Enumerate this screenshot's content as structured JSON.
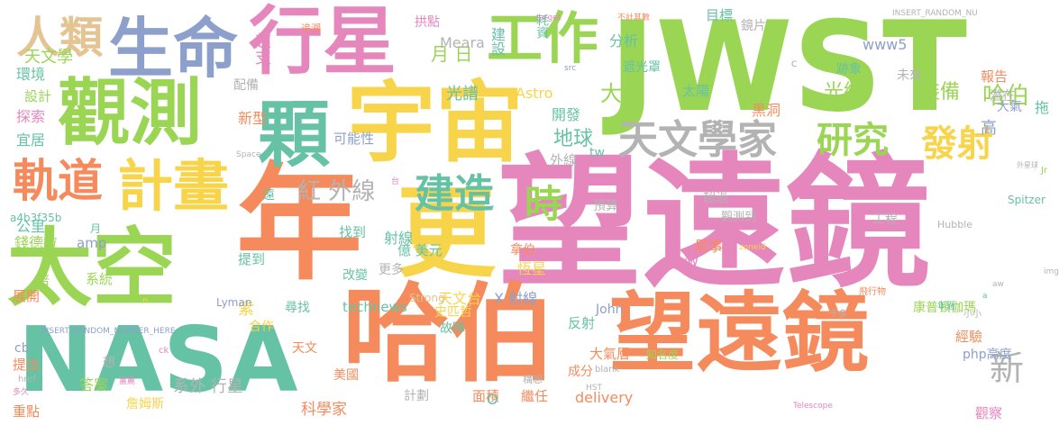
{
  "palette": {
    "pink": "#e586bd",
    "green": "#9ad554",
    "yellow": "#f8d44a",
    "orange": "#f58b5d",
    "blue": "#8da0cb",
    "teal": "#66c2a5",
    "tan": "#e5c494",
    "gray": "#b3b3b3"
  },
  "words": [
    {
      "text": "望遠鏡",
      "color": "#e586bd"
    },
    {
      "text": "年",
      "color": "#f58b5d"
    },
    {
      "text": "JWST",
      "color": "#9ad554"
    },
    {
      "text": "哈伯",
      "color": "#f58b5d"
    },
    {
      "text": "望遠鏡",
      "color": "#f58b5d"
    },
    {
      "text": "NASA",
      "color": "#66c2a5"
    },
    {
      "text": "太空",
      "color": "#9ad554"
    },
    {
      "text": "宇宙",
      "color": "#f8d44a"
    },
    {
      "text": "更",
      "color": "#f8d44a"
    },
    {
      "text": "行星",
      "color": "#e586bd"
    },
    {
      "text": "生命",
      "color": "#8da0cb"
    },
    {
      "text": "觀測",
      "color": "#9ad554"
    },
    {
      "text": "顆",
      "color": "#66c2a5"
    },
    {
      "text": "工作",
      "color": "#9ad554"
    },
    {
      "text": "計畫",
      "color": "#f8d44a"
    },
    {
      "text": "人類",
      "color": "#e5c494"
    },
    {
      "text": "天文學家",
      "color": "#b3b3b3"
    },
    {
      "text": "軌道",
      "color": "#f58b5d"
    },
    {
      "text": "研究",
      "color": "#9ad554"
    },
    {
      "text": "發射",
      "color": "#f8d44a"
    },
    {
      "text": "建造",
      "color": "#66c2a5"
    },
    {
      "text": "時",
      "color": "#9ad554"
    },
    {
      "text": "紅 外線",
      "color": "#b3b3b3"
    },
    {
      "text": "新",
      "color": "#b3b3b3"
    },
    {
      "text": "超支",
      "color": "#e586bd"
    },
    {
      "text": "哈伯",
      "color": "#9ad554"
    },
    {
      "text": "光線",
      "color": "#9ad554"
    },
    {
      "text": "大型",
      "color": "#9ad554"
    },
    {
      "text": "地球",
      "color": "#66c2a5"
    },
    {
      "text": "天文學",
      "color": "#9ad554"
    },
    {
      "text": "月 日",
      "color": "#9ad554"
    },
    {
      "text": "耗資",
      "color": "#66c2a5"
    },
    {
      "text": "目標",
      "color": "#66c2a5"
    },
    {
      "text": "Meara",
      "color": "#b3b3b3"
    },
    {
      "text": "拱點",
      "color": "#e586bd"
    },
    {
      "text": "追溯",
      "color": "#f58b5d"
    },
    {
      "text": "www5",
      "color": "#8da0cb"
    },
    {
      "text": "裝備",
      "color": "#9ad554"
    },
    {
      "text": "遮光罩",
      "color": "#66c2a5"
    },
    {
      "text": "跡象",
      "color": "#66c2a5"
    },
    {
      "text": "未來",
      "color": "#b3b3b3"
    },
    {
      "text": "分析",
      "color": "#66c2a5"
    },
    {
      "text": "建設",
      "color": "#66c2a5"
    },
    {
      "text": "鏡片",
      "color": "#b3b3b3"
    },
    {
      "text": "報告",
      "color": "#f58b5d"
    },
    {
      "text": "潛在",
      "color": "#b3b3b3"
    },
    {
      "text": "拖",
      "color": "#66c2a5"
    },
    {
      "text": "大氣",
      "color": "#8da0cb"
    },
    {
      "text": "高",
      "color": "#8da0cb"
    },
    {
      "text": "黑洞",
      "color": "#f58b5d"
    },
    {
      "text": "太陽",
      "color": "#66c2a5"
    },
    {
      "text": "開發",
      "color": "#66c2a5"
    },
    {
      "text": "光譜",
      "color": "#66c2a5"
    },
    {
      "text": "Astro",
      "color": "#f8d44a"
    },
    {
      "text": "配備",
      "color": "#b3b3b3"
    },
    {
      "text": "環境",
      "color": "#66c2a5"
    },
    {
      "text": "設計",
      "color": "#9ad554"
    },
    {
      "text": "探索",
      "color": "#e586bd"
    },
    {
      "text": "宜居",
      "color": "#66c2a5"
    },
    {
      "text": "新型",
      "color": "#f58b5d"
    },
    {
      "text": "可能性",
      "color": "#8da0cb"
    },
    {
      "text": "外線",
      "color": "#b3b3b3"
    },
    {
      "text": "tw",
      "color": "#66c2a5"
    },
    {
      "text": "遠",
      "color": "#66c2a5"
    },
    {
      "text": "公里",
      "color": "#66c2a5"
    },
    {
      "text": "錢德拉",
      "color": "#9ad554"
    },
    {
      "text": "射線",
      "color": "#66c2a5"
    },
    {
      "text": "找到",
      "color": "#66c2a5"
    },
    {
      "text": "億 美元",
      "color": "#66c2a5"
    },
    {
      "text": "預算",
      "color": "#b3b3b3"
    },
    {
      "text": "工程",
      "color": "#b3b3b3"
    },
    {
      "text": "易事",
      "color": "#f58b5d"
    },
    {
      "text": "www",
      "color": "#e586bd"
    },
    {
      "text": "拿伯",
      "color": "#f58b5d"
    },
    {
      "text": "恆星",
      "color": "#f8d44a"
    },
    {
      "text": "更多",
      "color": "#b3b3b3"
    },
    {
      "text": "改變",
      "color": "#66c2a5"
    },
    {
      "text": "提到",
      "color": "#66c2a5"
    },
    {
      "text": "amp",
      "color": "#8da0cb"
    },
    {
      "text": "系統",
      "color": "#9ad554"
    },
    {
      "text": "倍",
      "color": "#9ad554"
    },
    {
      "text": "展開",
      "color": "#f58b5d"
    },
    {
      "text": "天文台",
      "color": "#f8d44a"
    },
    {
      "text": "X 射線",
      "color": "#8da0cb"
    },
    {
      "text": "史匹哲",
      "color": "#f8d44a"
    },
    {
      "text": "technews",
      "color": "#66c2a5"
    },
    {
      "text": "尋找",
      "color": "#66c2a5"
    },
    {
      "text": "紫",
      "color": "#f8d44a"
    },
    {
      "text": "合作",
      "color": "#f8d44a"
    },
    {
      "text": "Lyman",
      "color": "#8da0cb"
    },
    {
      "text": "John",
      "color": "#8da0cb"
    },
    {
      "text": "反射",
      "color": "#66c2a5"
    },
    {
      "text": "故障",
      "color": "#66c2a5"
    },
    {
      "text": "康普頓伽瑪",
      "color": "#9ad554"
    },
    {
      "text": "經驗",
      "color": "#f58b5d"
    },
    {
      "text": "php高度",
      "color": "#8da0cb"
    },
    {
      "text": "大氣層",
      "color": "#f58b5d"
    },
    {
      "text": "成分",
      "color": "#f58b5d"
    },
    {
      "text": "知名度",
      "color": "#9ad554"
    },
    {
      "text": "天文",
      "color": "#f58b5d"
    },
    {
      "text": "美國",
      "color": "#f58b5d"
    },
    {
      "text": "提出",
      "color": "#f58b5d"
    },
    {
      "text": "cb",
      "color": "#8da0cb"
    },
    {
      "text": "想",
      "color": "#b3b3b3"
    },
    {
      "text": "重點",
      "color": "#f58b5d"
    },
    {
      "text": "答案",
      "color": "#9ad554"
    },
    {
      "text": "詹姆斯",
      "color": "#f8d44a"
    },
    {
      "text": "系外 行星",
      "color": "#b3b3b3"
    },
    {
      "text": "科學家",
      "color": "#f58b5d"
    },
    {
      "text": "計劃",
      "color": "#b3b3b3"
    },
    {
      "text": "面積",
      "color": "#f58b5d"
    },
    {
      "text": "O",
      "color": "#66c2a5"
    },
    {
      "text": "繼任",
      "color": "#f58b5d"
    },
    {
      "text": "delivery",
      "color": "#f58b5d"
    },
    {
      "text": "觀察",
      "color": "#e586bd"
    },
    {
      "text": "構想",
      "color": "#b3b3b3"
    },
    {
      "text": "超過",
      "color": "#b3b3b3"
    },
    {
      "text": "觀測到",
      "color": "#b3b3b3"
    },
    {
      "text": "INSERT_RANDOM_NUMBER_HERE",
      "color": "#8da0cb"
    },
    {
      "text": "INSERT_RANDOM_NU",
      "color": "#b3b3b3"
    },
    {
      "text": "Spitzer",
      "color": "#66c2a5"
    },
    {
      "text": "Hubble",
      "color": "#b3b3b3"
    },
    {
      "text": "a4b3f35b",
      "color": "#66c2a5"
    },
    {
      "text": "月",
      "color": "#66c2a5"
    },
    {
      "text": "a",
      "color": "#66c2a5"
    },
    {
      "text": "n",
      "color": "#f8d44a"
    },
    {
      "text": "ck",
      "color": "#e586bd"
    },
    {
      "text": "href",
      "color": "#b3b3b3"
    },
    {
      "text": "Strong",
      "color": "#e5c494"
    },
    {
      "text": "Space",
      "color": "#b3b3b3"
    },
    {
      "text": "Telescope",
      "color": "#e586bd"
    },
    {
      "text": "HST",
      "color": "#b3b3b3"
    },
    {
      "text": "target",
      "color": "#e586bd"
    },
    {
      "text": "不計其數",
      "color": "#f58b5d"
    },
    {
      "text": "飛行物",
      "color": "#f58b5d"
    },
    {
      "text": "台",
      "color": "#e586bd"
    },
    {
      "text": "C",
      "color": "#8da0cb"
    },
    {
      "text": "Jr",
      "color": "#9ad554"
    },
    {
      "text": "img",
      "color": "#b3b3b3"
    },
    {
      "text": "aw",
      "color": "#b3b3b3"
    },
    {
      "text": "zoneid",
      "color": "#f8d44a"
    },
    {
      "text": "blank",
      "color": "#b3b3b3"
    },
    {
      "text": "src",
      "color": "#8da0cb"
    },
    {
      "text": "小小",
      "color": "#b3b3b3"
    },
    {
      "text": "千多",
      "color": "#b3b3b3"
    },
    {
      "text": "年過",
      "color": "#66c2a5"
    },
    {
      "text": "薑麗",
      "color": "#e586bd"
    },
    {
      "text": "多久",
      "color": "#e586bd"
    },
    {
      "text": "外星球",
      "color": "#b3b3b3"
    }
  ]
}
